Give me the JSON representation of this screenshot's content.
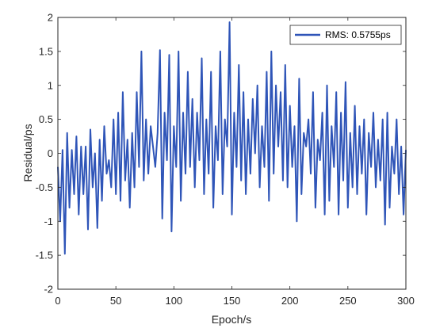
{
  "chart_data": {
    "type": "line",
    "xlabel": "Epoch/s",
    "ylabel": "Residual/ps",
    "xlim": [
      0,
      300
    ],
    "ylim": [
      -2,
      2
    ],
    "xticks": [
      0,
      50,
      100,
      150,
      200,
      250,
      300
    ],
    "yticks": [
      -2,
      -1.5,
      -1,
      -0.5,
      0,
      0.5,
      1,
      1.5,
      2
    ],
    "xtick_labels": [
      "0",
      "50",
      "100",
      "150",
      "200",
      "250",
      "300"
    ],
    "ytick_labels": [
      "-2",
      "-1.5",
      "-1",
      "-0.5",
      "0",
      "0.5",
      "1",
      "1.5",
      "2"
    ],
    "grid": false,
    "legend_position": "top-right",
    "series": [
      {
        "name": "RMS: 0.5755ps",
        "color": "#2f55b8",
        "x": [
          0,
          2,
          4,
          6,
          8,
          10,
          12,
          14,
          16,
          18,
          20,
          22,
          24,
          26,
          28,
          30,
          32,
          34,
          36,
          38,
          40,
          42,
          44,
          46,
          48,
          50,
          52,
          54,
          56,
          58,
          60,
          62,
          64,
          66,
          68,
          70,
          72,
          74,
          76,
          78,
          80,
          82,
          84,
          86,
          88,
          90,
          92,
          94,
          96,
          98,
          100,
          102,
          104,
          106,
          108,
          110,
          112,
          114,
          116,
          118,
          120,
          122,
          124,
          126,
          128,
          130,
          132,
          134,
          136,
          138,
          140,
          142,
          144,
          146,
          148,
          150,
          152,
          154,
          156,
          158,
          160,
          162,
          164,
          166,
          168,
          170,
          172,
          174,
          176,
          178,
          180,
          182,
          184,
          186,
          188,
          190,
          192,
          194,
          196,
          198,
          200,
          202,
          204,
          206,
          208,
          210,
          212,
          214,
          216,
          218,
          220,
          222,
          224,
          226,
          228,
          230,
          232,
          234,
          236,
          238,
          240,
          242,
          244,
          246,
          248,
          250,
          252,
          254,
          256,
          258,
          260,
          262,
          264,
          266,
          268,
          270,
          272,
          274,
          276,
          278,
          280,
          282,
          284,
          286,
          288,
          290,
          292,
          294,
          296,
          298,
          300
        ],
        "y": [
          -0.2,
          -1.0,
          0.05,
          -1.48,
          0.3,
          -0.8,
          0.05,
          -0.6,
          0.25,
          -0.9,
          0.1,
          -0.6,
          0.1,
          -1.12,
          0.35,
          -0.5,
          0.0,
          -1.1,
          0.2,
          -0.7,
          0.4,
          -0.3,
          -0.1,
          -0.5,
          0.5,
          -0.6,
          0.6,
          -0.7,
          0.9,
          -0.4,
          0.2,
          -0.8,
          0.3,
          -0.5,
          0.9,
          -0.2,
          1.5,
          -0.4,
          0.5,
          -0.3,
          0.4,
          0.1,
          -0.2,
          0.3,
          1.52,
          -0.96,
          0.6,
          -0.1,
          1.45,
          -1.15,
          0.4,
          -0.2,
          1.5,
          -0.7,
          0.6,
          -0.3,
          1.2,
          -0.2,
          0.8,
          -0.5,
          0.6,
          -0.1,
          1.4,
          -0.6,
          0.5,
          -0.3,
          1.2,
          -0.8,
          0.4,
          -0.1,
          1.5,
          -0.6,
          0.5,
          0.1,
          1.93,
          -0.9,
          0.6,
          -0.2,
          1.3,
          -0.4,
          0.9,
          -0.6,
          0.5,
          -0.3,
          0.8,
          0.0,
          1.0,
          -0.5,
          0.4,
          -0.2,
          1.2,
          -0.7,
          1.5,
          -0.3,
          1.0,
          0.1,
          0.9,
          -0.4,
          1.3,
          -0.5,
          0.7,
          -0.2,
          0.4,
          -1.0,
          1.1,
          -0.6,
          0.3,
          0.1,
          0.5,
          -0.3,
          0.9,
          -0.8,
          0.2,
          -0.1,
          0.6,
          -0.9,
          1.0,
          -0.7,
          0.4,
          -0.2,
          0.9,
          -0.9,
          0.6,
          -0.4,
          1.05,
          -0.8,
          0.3,
          -0.5,
          0.7,
          -0.6,
          0.4,
          -0.3,
          0.5,
          -0.9,
          0.3,
          -0.2,
          0.6,
          -0.5,
          0.2,
          -0.4,
          0.5,
          -1.05,
          0.6,
          -0.8,
          0.1,
          -0.3,
          0.5,
          -0.6,
          0.1,
          -0.9,
          0.05
        ]
      }
    ]
  }
}
